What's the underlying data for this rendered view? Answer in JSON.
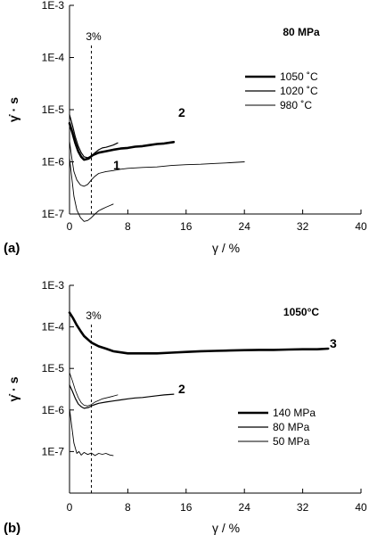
{
  "chart_data": [
    {
      "panel_label": "(a)",
      "type": "line",
      "y_scale": "log",
      "xlim": [
        0,
        40
      ],
      "ylim": [
        1e-07,
        0.001
      ],
      "x_ticks": [
        0,
        8,
        16,
        24,
        32,
        40
      ],
      "x_tick_labels": [
        "0",
        "8",
        "16",
        "24",
        "32",
        "40"
      ],
      "y_ticks": [
        1e-07,
        1e-06,
        1e-05,
        0.0001,
        0.001
      ],
      "y_tick_labels": [
        "1E-7",
        "1E-6",
        "1E-5",
        "1E-4",
        "1E-3"
      ],
      "xlabel": "γ / %",
      "ylabel": "γ̇ · s",
      "condition_label": "80 MPa",
      "grid": false,
      "legend_position": "right",
      "ref_line": {
        "x": 3,
        "label": "3%"
      },
      "series": [
        {
          "name": "1050 ˚C",
          "curve_label": "2",
          "stroke_width": 2.6,
          "legend_row": 0,
          "x": [
            0,
            0.4,
            0.8,
            1.2,
            1.6,
            2.0,
            2.6,
            3.2,
            4,
            5,
            6,
            7,
            8,
            9,
            10,
            11,
            12,
            13,
            14.3
          ],
          "y": [
            5.5e-06,
            3.6e-06,
            2.3e-06,
            1.6e-06,
            1.25e-06,
            1.1e-06,
            1.15e-06,
            1.35e-06,
            1.5e-06,
            1.6e-06,
            1.7e-06,
            1.8e-06,
            1.85e-06,
            1.95e-06,
            2e-06,
            2.1e-06,
            2.2e-06,
            2.25e-06,
            2.4e-06
          ]
        },
        {
          "name": "1020 ˚C",
          "curve_label": "",
          "stroke_width": 1.2,
          "legend_row": 1,
          "x": [
            0,
            0.4,
            0.8,
            1.2,
            1.6,
            2.0,
            2.5,
            3.0,
            3.5,
            4.0,
            4.5,
            5.0,
            5.5,
            6.0,
            6.6
          ],
          "y": [
            8e-06,
            5e-06,
            3e-06,
            2e-06,
            1.5e-06,
            1.25e-06,
            1.2e-06,
            1.3e-06,
            1.5e-06,
            1.7e-06,
            1.85e-06,
            1.9e-06,
            2e-06,
            2.1e-06,
            2.3e-06
          ]
        },
        {
          "name": "980 ˚C",
          "curve_label": "",
          "stroke_width": 0.9,
          "legend_row": 2,
          "x": [
            0,
            0.3,
            0.6,
            1.0,
            1.5,
            2.0,
            2.5,
            3.0,
            3.5,
            4,
            5,
            6,
            7,
            8,
            10,
            12,
            14,
            16,
            18,
            20,
            22,
            24
          ],
          "y": [
            2.5e-06,
            1.2e-06,
            6.5e-07,
            4.5e-07,
            3.6e-07,
            3.4e-07,
            3.7e-07,
            4.5e-07,
            5.3e-07,
            6e-07,
            6.5e-07,
            6.8e-07,
            7.2e-07,
            7.5e-07,
            7.8e-07,
            8e-07,
            8.5e-07,
            8.8e-07,
            9e-07,
            9.3e-07,
            9.6e-07,
            1e-06
          ]
        },
        {
          "name": "",
          "curve_label": "1",
          "stroke_width": 0.9,
          "legend_row": -1,
          "x": [
            0,
            0.3,
            0.6,
            1.0,
            1.5,
            2.0,
            2.5,
            3.0,
            3.5,
            4.0,
            4.5,
            5.0,
            5.5,
            6.0
          ],
          "y": [
            1.2e-06,
            5e-07,
            2.2e-07,
            1.2e-07,
            8.5e-08,
            7.2e-08,
            7.5e-08,
            8.5e-08,
            1e-07,
            1.15e-07,
            1.25e-07,
            1.35e-07,
            1.45e-07,
            1.55e-07
          ]
        }
      ]
    },
    {
      "panel_label": "(b)",
      "type": "line",
      "y_scale": "log",
      "xlim": [
        0,
        40
      ],
      "ylim": [
        1e-08,
        0.001
      ],
      "x_ticks": [
        0,
        8,
        16,
        24,
        32,
        40
      ],
      "x_tick_labels": [
        "0",
        "8",
        "16",
        "24",
        "32",
        "40"
      ],
      "y_ticks": [
        1e-07,
        1e-06,
        1e-05,
        0.0001,
        0.001
      ],
      "y_tick_labels": [
        "1E-7",
        "1E-6",
        "1E-5",
        "1E-4",
        "1E-3"
      ],
      "xlabel": "γ / %",
      "ylabel": "γ̇ · s",
      "condition_label": "1050°C",
      "grid": false,
      "legend_position": "right",
      "ref_line": {
        "x": 3,
        "label": "3%"
      },
      "series": [
        {
          "name": "140 MPa",
          "curve_label": "3",
          "stroke_width": 2.6,
          "legend_row": 0,
          "x": [
            0,
            0.5,
            1,
            1.5,
            2,
            3,
            4,
            5,
            6,
            8,
            10,
            12,
            14,
            16,
            18,
            20,
            22,
            24,
            26,
            28,
            30,
            32,
            34,
            35.5
          ],
          "y": [
            0.00022,
            0.00016,
            0.00011,
            8e-05,
            6e-05,
            4.2e-05,
            3.4e-05,
            3e-05,
            2.6e-05,
            2.3e-05,
            2.3e-05,
            2.3e-05,
            2.4e-05,
            2.5e-05,
            2.6e-05,
            2.65e-05,
            2.7e-05,
            2.75e-05,
            2.8e-05,
            2.8e-05,
            2.85e-05,
            2.9e-05,
            2.9e-05,
            3e-05
          ]
        },
        {
          "name": "80 MPa",
          "curve_label": "2",
          "stroke_width": 1.2,
          "legend_row": 1,
          "x": [
            0,
            0.4,
            0.8,
            1.2,
            1.6,
            2.0,
            2.6,
            3.2,
            4,
            5,
            6,
            7,
            8,
            9,
            10,
            11,
            12,
            13,
            14.3
          ],
          "y": [
            4e-06,
            2.8e-06,
            1.9e-06,
            1.4e-06,
            1.2e-06,
            1.1e-06,
            1.15e-06,
            1.3e-06,
            1.45e-06,
            1.55e-06,
            1.65e-06,
            1.75e-06,
            1.85e-06,
            1.95e-06,
            2e-06,
            2.1e-06,
            2.2e-06,
            2.3e-06,
            2.4e-06
          ]
        },
        {
          "name": "",
          "curve_label": "",
          "stroke_width": 0.8,
          "legend_row": -1,
          "x": [
            0,
            0.4,
            0.8,
            1.2,
            1.6,
            2.0,
            2.5,
            3.0,
            3.5,
            4.0,
            4.5,
            5.0,
            5.5,
            6.0,
            6.6
          ],
          "y": [
            8e-06,
            5e-06,
            3e-06,
            2e-06,
            1.5e-06,
            1.3e-06,
            1.25e-06,
            1.35e-06,
            1.55e-06,
            1.7e-06,
            1.85e-06,
            1.95e-06,
            2.05e-06,
            2.15e-06,
            2.3e-06
          ]
        },
        {
          "name": "50 MPa",
          "curve_label": "",
          "stroke_width": 0.9,
          "legend_row": 2,
          "x": [
            0,
            0.3,
            0.6,
            1.0,
            1.3,
            1.6,
            2.0,
            2.5,
            3.0,
            3.5,
            4.0,
            4.5,
            5.0,
            5.5,
            6.0
          ],
          "y": [
            1.1e-06,
            4e-07,
            1.6e-07,
            9e-08,
            1e-07,
            8.2e-08,
            9.5e-08,
            8.5e-08,
            9.2e-08,
            8e-08,
            9e-08,
            8.6e-08,
            9e-08,
            8.3e-08,
            8e-08
          ]
        }
      ]
    }
  ]
}
